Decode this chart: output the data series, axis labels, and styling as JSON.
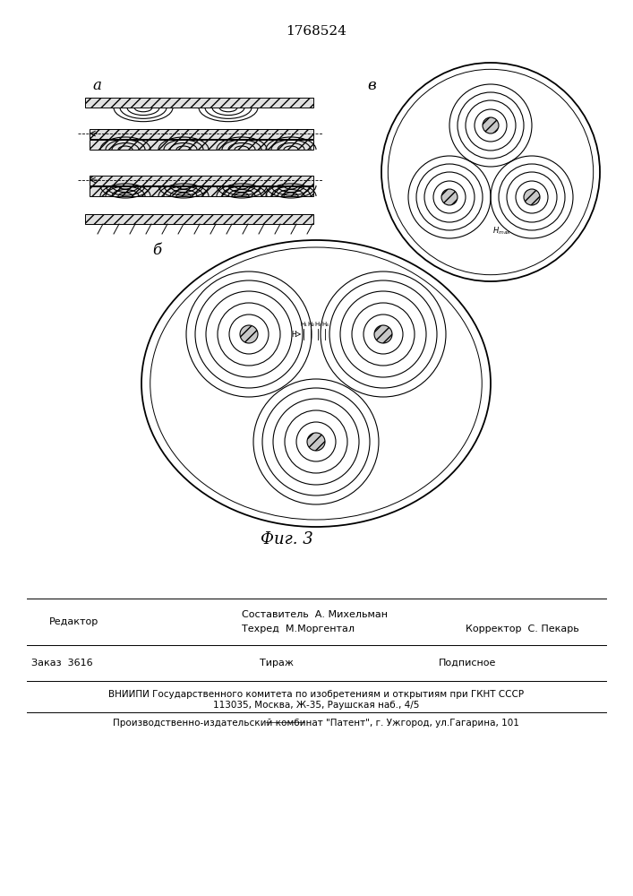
{
  "title": "1768524",
  "fig_label": "Фиг. 3",
  "label_a": "а",
  "label_b": "б",
  "label_v": "в",
  "bottom_text_line1": "Составитель  А. Михельман",
  "bottom_text_line2": "Техред  М.Моргентал",
  "bottom_text_line3": "Корректор  С. Пекарь",
  "bottom_text_editor": "Редактор",
  "bottom_order": "Заказ  3616",
  "bottom_tirazh": "Тираж",
  "bottom_podpisnoe": "Подписное",
  "bottom_vniiipi": "ВНИИПИ Государственного комитета по изобретениям и открытиям при ГКНТ СССР",
  "bottom_address": "113035, Москва, Ж-35, Раушская наб., 4/5",
  "bottom_factory": "Производственно-издательский комбинат \"Патент\", г. Ужгород, ул.Гагарина, 101",
  "line_color": "#000000",
  "bg_color": "#ffffff"
}
